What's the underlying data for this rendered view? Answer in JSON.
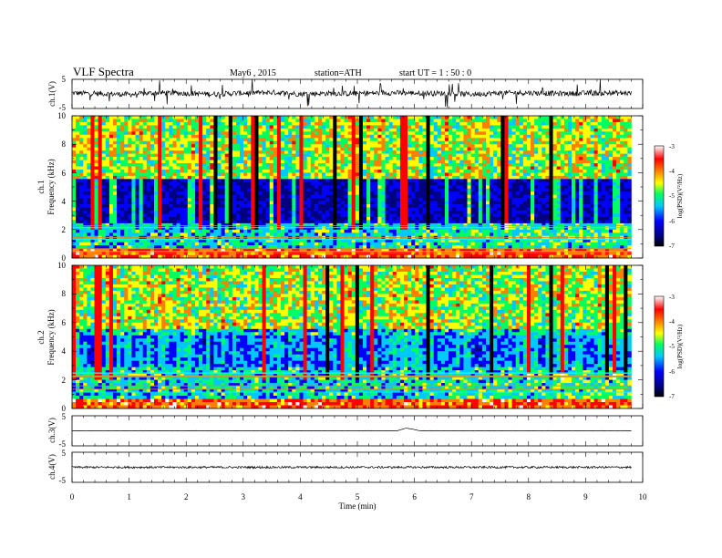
{
  "header": {
    "title": "VLF  Spectra",
    "date": "May6  , 2015",
    "station": "station=ATH",
    "start": "start  UT  =   1 : 50 : 0"
  },
  "chart_data": [
    {
      "type": "line",
      "panel": "ch1",
      "ylabel": "ch.1(V)",
      "ylim": [
        -5,
        5
      ],
      "yticks": [
        "5",
        "-5"
      ],
      "xlim": [
        0,
        10
      ],
      "description_series": "noisy waveform around 0 V with many sferic spikes",
      "x": [
        0,
        0.5,
        1,
        1.5,
        2,
        2.5,
        3,
        3.5,
        4,
        4.5,
        5,
        5.5,
        6,
        6.5,
        7,
        7.5,
        8,
        8.5,
        9,
        9.5,
        9.8
      ],
      "y": [
        0.3,
        0.1,
        -0.2,
        0.4,
        0.2,
        -0.1,
        0.3,
        0.5,
        0.0,
        0.2,
        0.1,
        0.4,
        0.3,
        0.2,
        -0.1,
        0.3,
        0.4,
        0.1,
        0.2,
        0.3,
        0.2
      ]
    },
    {
      "type": "heatmap",
      "panel": "ch1-spectrogram",
      "ylabel_top": "ch.1",
      "ylabel": "Frequency  (kHz)",
      "ylim": [
        0,
        10
      ],
      "yticks": [
        "0",
        "2",
        "4",
        "6",
        "8",
        "10"
      ],
      "xlim": [
        0,
        10
      ],
      "time_end_min": 9.8,
      "colorbar": {
        "label": "log(PSD)(V²/Hz)",
        "ticks": [
          "-3",
          "-4",
          "-5",
          "-6",
          "-7"
        ],
        "range": [
          -7,
          -3
        ]
      }
    },
    {
      "type": "heatmap",
      "panel": "ch2-spectrogram",
      "ylabel_top": "ch.2",
      "ylabel": "Frequency  (kHz)",
      "ylim": [
        0,
        10
      ],
      "yticks": [
        "0",
        "2",
        "4",
        "6",
        "8",
        "10"
      ],
      "xlim": [
        0,
        10
      ],
      "time_end_min": 9.8,
      "colorbar": {
        "label": "log(PSD)(V²/Hz)",
        "ticks": [
          "-3",
          "-4",
          "-5",
          "-6",
          "-7"
        ],
        "range": [
          -7,
          -3
        ]
      }
    },
    {
      "type": "line",
      "panel": "ch3",
      "ylabel": "ch.3(V)",
      "ylim": [
        -5,
        5
      ],
      "yticks": [
        "5",
        "-5"
      ],
      "xlim": [
        0,
        10
      ],
      "x": [
        0,
        1,
        2,
        3,
        4,
        5,
        5.7,
        5.85,
        5.95,
        6.1,
        7,
        8,
        9,
        9.8
      ],
      "y": [
        0,
        0,
        0,
        0,
        0,
        0,
        0,
        0.9,
        0.6,
        0,
        0,
        0,
        0,
        0
      ]
    },
    {
      "type": "line",
      "panel": "ch4",
      "ylabel": "ch.4(V)",
      "ylim": [
        -5,
        5
      ],
      "yticks": [
        "5",
        "-5"
      ],
      "xlim": [
        0,
        10
      ],
      "x": [
        0,
        1,
        2,
        3,
        4,
        5,
        6,
        7,
        8,
        9,
        9.8
      ],
      "y": [
        0,
        0,
        0,
        0,
        0,
        0,
        0,
        0,
        0,
        0,
        0
      ]
    }
  ],
  "xaxis": {
    "label": "Time  (min)",
    "ticks": [
      "0",
      "1",
      "2",
      "3",
      "4",
      "5",
      "6",
      "7",
      "8",
      "9",
      "10"
    ]
  },
  "colors": {
    "frame": "#000000",
    "background": "#ffffff",
    "colorscale": [
      "#000000",
      "#000080",
      "#0000ff",
      "#00c8ff",
      "#00ff60",
      "#ffff00",
      "#ff8000",
      "#ff0000",
      "#ffffff"
    ]
  }
}
